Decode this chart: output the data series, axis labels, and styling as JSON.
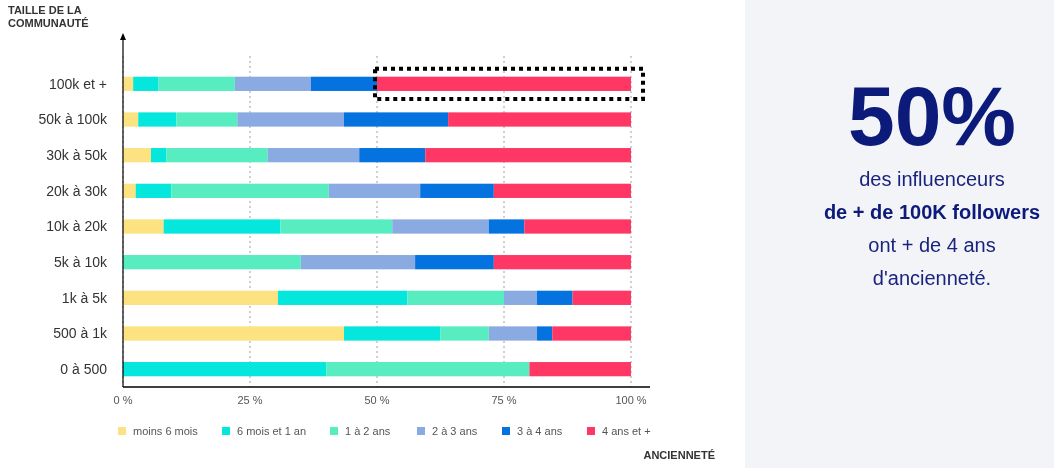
{
  "chart_data": {
    "type": "bar",
    "orientation": "horizontal",
    "stacked": true,
    "ylabel": "TAILLE DE LA\nCOMMUNAUTÉ",
    "xlabel": "ANCIENNETÉ",
    "categories": [
      "100k et +",
      "50k à 100k",
      "30k à 50k",
      "20k à 30k",
      "10k à 20k",
      "5k à 10k",
      "1k à 5k",
      "500 à 1k",
      "0 à 500"
    ],
    "series": [
      {
        "name": "moins 6 mois",
        "color": "#fde281",
        "values": [
          2,
          3,
          5.5,
          2.5,
          8,
          0,
          30.5,
          43.5,
          0
        ]
      },
      {
        "name": "6 mois et 1 an",
        "color": "#05e6dd",
        "values": [
          5,
          7.5,
          3,
          7,
          23,
          0,
          25.5,
          19,
          40
        ]
      },
      {
        "name": "1 à 2 ans",
        "color": "#58ecc1",
        "values": [
          15,
          12,
          20,
          31,
          22,
          35,
          19,
          9.5,
          40
        ]
      },
      {
        "name": "2 à 3 ans",
        "color": "#8aaae2",
        "values": [
          15,
          21,
          18,
          18,
          19,
          22.5,
          6.5,
          9.5,
          0
        ]
      },
      {
        "name": "3 à 4 ans",
        "color": "#0473e0",
        "values": [
          13,
          20.5,
          13,
          14.5,
          7,
          15.5,
          7,
          3,
          0
        ]
      },
      {
        "name": "4 ans et +",
        "color": "#fe3764",
        "values": [
          50,
          36,
          40.5,
          27,
          21,
          27,
          11.5,
          15.5,
          20
        ]
      }
    ],
    "xlim": [
      0,
      100
    ],
    "xticks": [
      {
        "value": 0,
        "label": "0 %"
      },
      {
        "value": 25,
        "label": "25 %"
      },
      {
        "value": 50,
        "label": "50 %"
      },
      {
        "value": 75,
        "label": "75 %"
      },
      {
        "value": 100,
        "label": "100 %"
      }
    ],
    "grid": "x",
    "legend": "bottom",
    "annotations": [
      "50%",
      "des influenceurs",
      "de + de 100K followers",
      "ont + de 4 ans",
      "d'ancienneté."
    ]
  }
}
